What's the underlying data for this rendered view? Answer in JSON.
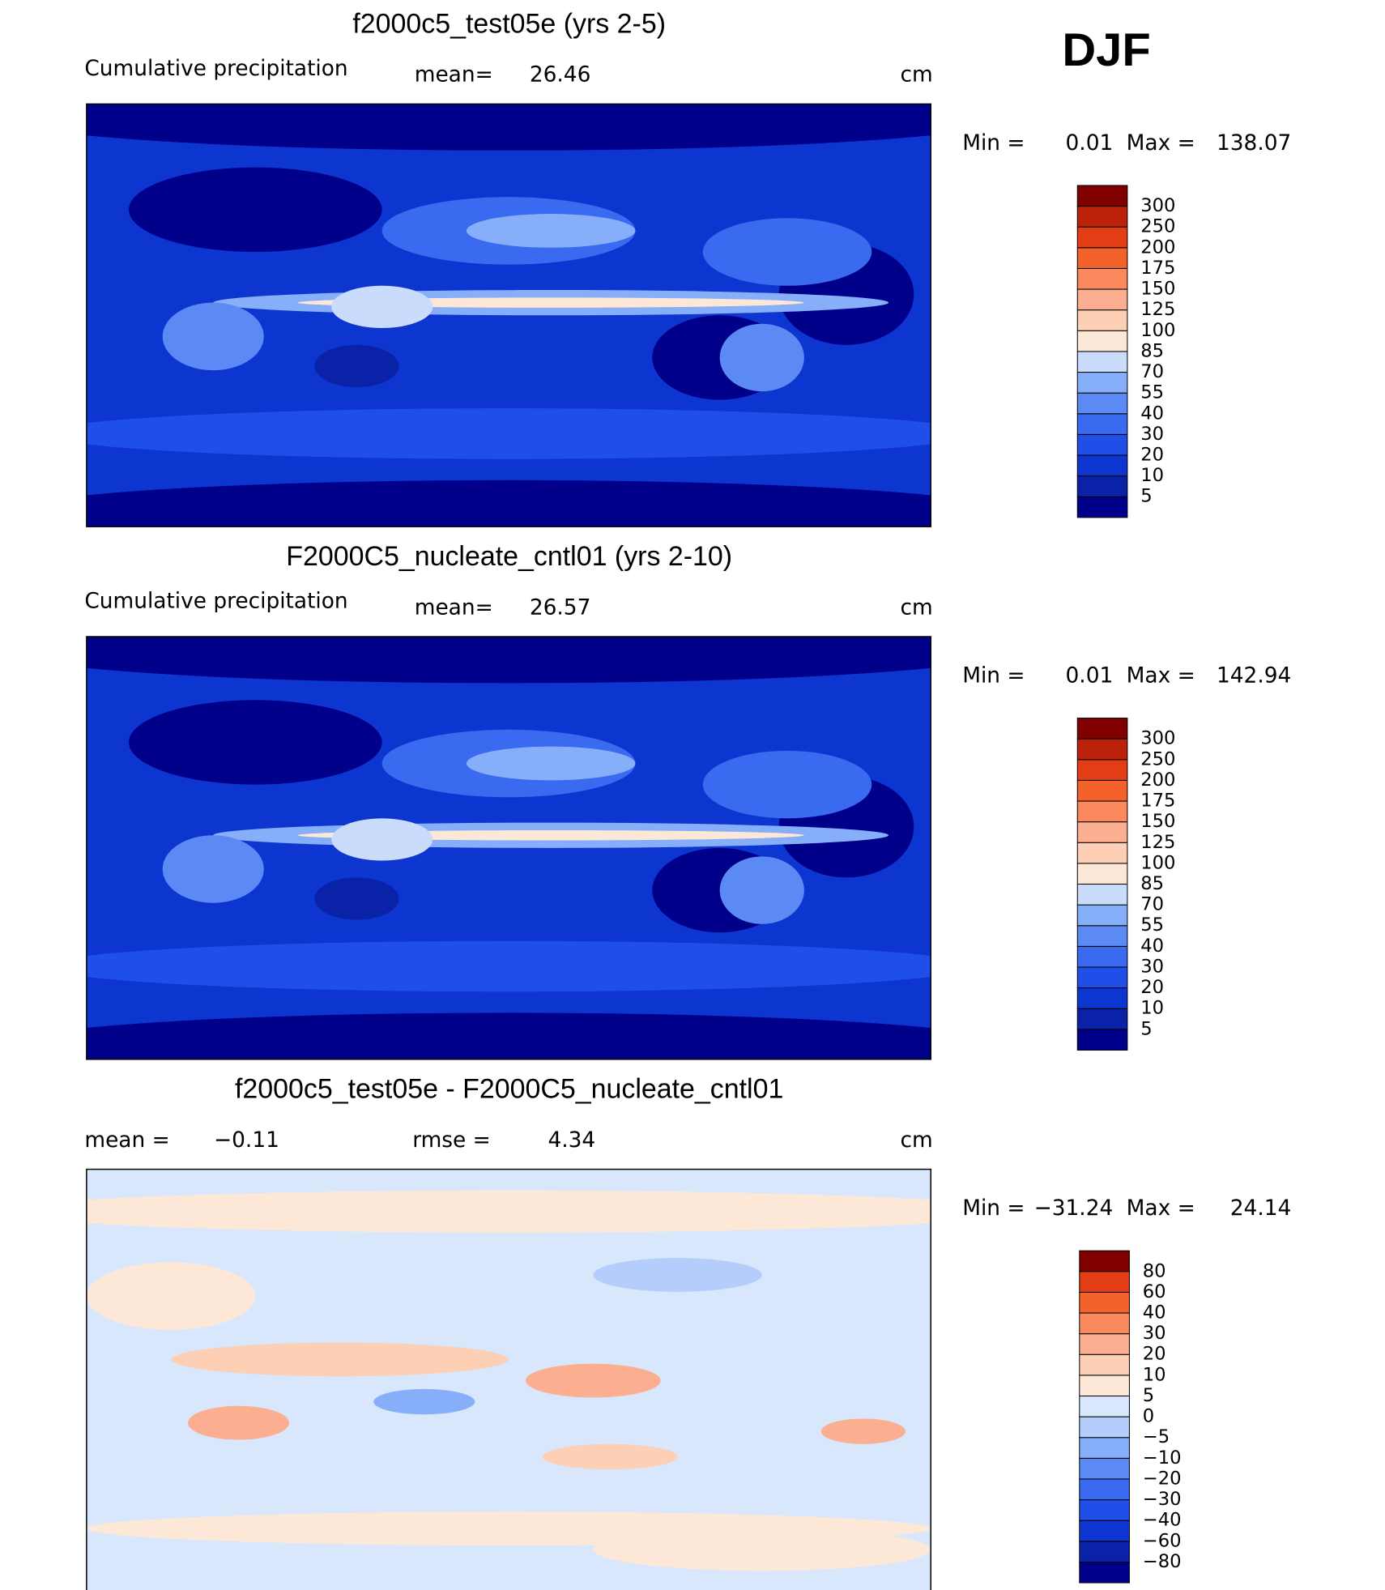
{
  "season": "DJF",
  "panels": [
    {
      "title": "f2000c5_test05e (yrs 2-5)",
      "variable": "Cumulative precipitation",
      "stats": [
        {
          "label": "mean=",
          "value": 26.46
        }
      ],
      "units": "cm",
      "min_label": "Min =",
      "min": 0.01,
      "max_label": "Max =",
      "max": 138.07,
      "colorbar": {
        "levels": [
          5,
          10,
          20,
          30,
          40,
          55,
          70,
          85,
          100,
          125,
          150,
          175,
          200,
          250,
          300
        ],
        "colors": [
          "#00008b",
          "#0a22a8",
          "#0d36d0",
          "#1f4ee8",
          "#3a6af0",
          "#5b8af5",
          "#86aef9",
          "#c9dcfb",
          "#fde8d8",
          "#fdcfb5",
          "#fcae90",
          "#fa8a5e",
          "#f4622c",
          "#e23d15",
          "#bb2209",
          "#800000"
        ]
      }
    },
    {
      "title": "F2000C5_nucleate_cntl01 (yrs 2-10)",
      "variable": "Cumulative precipitation",
      "stats": [
        {
          "label": "mean=",
          "value": 26.57
        }
      ],
      "units": "cm",
      "min_label": "Min =",
      "min": 0.01,
      "max_label": "Max =",
      "max": 142.94,
      "colorbar": {
        "levels": [
          5,
          10,
          20,
          30,
          40,
          55,
          70,
          85,
          100,
          125,
          150,
          175,
          200,
          250,
          300
        ],
        "colors": [
          "#00008b",
          "#0a22a8",
          "#0d36d0",
          "#1f4ee8",
          "#3a6af0",
          "#5b8af5",
          "#86aef9",
          "#c9dcfb",
          "#fde8d8",
          "#fdcfb5",
          "#fcae90",
          "#fa8a5e",
          "#f4622c",
          "#e23d15",
          "#bb2209",
          "#800000"
        ]
      }
    },
    {
      "title": "f2000c5_test05e - F2000C5_nucleate_cntl01",
      "stats": [
        {
          "label": "mean =",
          "value": {
            "value": -0.11,
            "label": "−0.11"
          }
        },
        {
          "label": "rmse =",
          "value": 4.34
        }
      ],
      "units": "cm",
      "min_label": "Min =",
      "min": {
        "value": -31.24,
        "label": "−31.24"
      },
      "max_label": "Max =",
      "max": 24.14,
      "colorbar": {
        "levels": [
          {
            "value": -80,
            "label": "−80"
          },
          {
            "value": -60,
            "label": "−60"
          },
          {
            "value": -40,
            "label": "−40"
          },
          {
            "value": -30,
            "label": "−30"
          },
          {
            "value": -20,
            "label": "−20"
          },
          {
            "value": -10,
            "label": "−10"
          },
          {
            "value": -5,
            "label": "−5"
          },
          0,
          5,
          10,
          20,
          30,
          40,
          60,
          80
        ],
        "colors": [
          "#00008b",
          "#0a22a8",
          "#0d36d0",
          "#1f4ee8",
          "#3a6af0",
          "#5b8af5",
          "#86aef9",
          "#b4cdfa",
          "#d8e7fb",
          "#fde8d8",
          "#fdcfb5",
          "#fcae90",
          "#fa8a5e",
          "#f4622c",
          "#e23d15",
          "#800000"
        ]
      }
    }
  ]
}
